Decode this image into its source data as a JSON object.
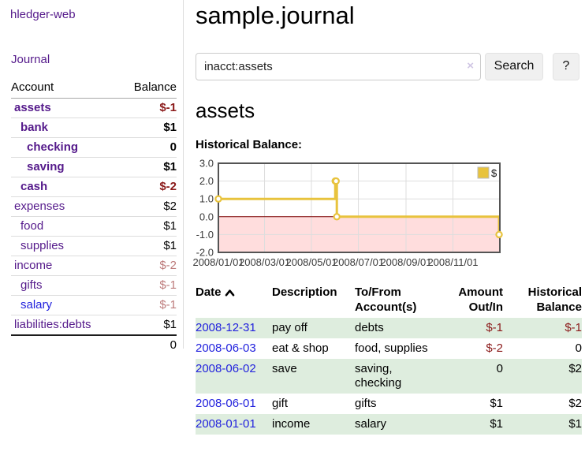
{
  "colors": {
    "link_purple": "#551A8B",
    "link_blue": "#2222DD",
    "negative_strong": "#8b1a1a",
    "negative_soft": "#bd7b7b",
    "row_stripe_green": "#deedde",
    "chart_line": "#E8C33D",
    "chart_negative_fill": "#ffdddd",
    "chart_zero_line": "#800000"
  },
  "sidebar": {
    "app_title": "hledger-web",
    "nav": {
      "journal_label": "Journal"
    },
    "accounts_table": {
      "headers": {
        "account": "Account",
        "balance": "Balance"
      },
      "rows": [
        {
          "account": "assets",
          "indent": 1,
          "bold": true,
          "link_tone": "purple",
          "balance": "$-1",
          "balance_tone": "neg-strong"
        },
        {
          "account": "bank",
          "indent": 2,
          "bold": true,
          "link_tone": "purple",
          "balance": "$1",
          "balance_tone": "pos"
        },
        {
          "account": "checking",
          "indent": 3,
          "bold": true,
          "link_tone": "purple",
          "balance": "0",
          "balance_tone": "pos"
        },
        {
          "account": "saving",
          "indent": 3,
          "bold": true,
          "link_tone": "purple",
          "balance": "$1",
          "balance_tone": "pos"
        },
        {
          "account": "cash",
          "indent": 2,
          "bold": true,
          "link_tone": "purple",
          "balance": "$-2",
          "balance_tone": "neg-strong"
        },
        {
          "account": "expenses",
          "indent": 1,
          "bold": false,
          "link_tone": "purple",
          "balance": "$2",
          "balance_tone": "pos"
        },
        {
          "account": "food",
          "indent": 2,
          "bold": false,
          "link_tone": "purple",
          "balance": "$1",
          "balance_tone": "pos"
        },
        {
          "account": "supplies",
          "indent": 2,
          "bold": false,
          "link_tone": "purple",
          "balance": "$1",
          "balance_tone": "pos"
        },
        {
          "account": "income",
          "indent": 1,
          "bold": false,
          "link_tone": "purple",
          "balance": "$-2",
          "balance_tone": "neg-soft"
        },
        {
          "account": "gifts",
          "indent": 2,
          "bold": false,
          "link_tone": "purple",
          "balance": "$-1",
          "balance_tone": "neg-soft"
        },
        {
          "account": "salary",
          "indent": 2,
          "bold": false,
          "link_tone": "blue",
          "balance": "$-1",
          "balance_tone": "neg-soft"
        },
        {
          "account": "liabilities:debts",
          "indent": 1,
          "bold": false,
          "link_tone": "purple",
          "balance": "$1",
          "balance_tone": "pos"
        }
      ],
      "total": "0"
    }
  },
  "main": {
    "page_title": "sample.journal",
    "search": {
      "value": "inacct:assets",
      "clear_icon": "×",
      "button_label": "Search",
      "help_label": "?"
    },
    "account_heading": "assets",
    "chart_heading": "Historical Balance:"
  },
  "chart_data": {
    "type": "line",
    "step": true,
    "title": "Historical Balance:",
    "series": [
      {
        "name": "$",
        "color": "#E8C33D",
        "points": [
          [
            "2008-01-01",
            1
          ],
          [
            "2008-06-01",
            2
          ],
          [
            "2008-06-02",
            2
          ],
          [
            "2008-06-03",
            0
          ],
          [
            "2008-12-31",
            -1
          ]
        ]
      }
    ],
    "x_range": [
      "2008-01-01",
      "2009-01-01"
    ],
    "x_tick_labels": [
      "2008/01/01",
      "2008/03/01",
      "2008/05/01",
      "2008/07/01",
      "2008/09/01",
      "2008/11/01"
    ],
    "y_ticks": [
      "3.0",
      "2.0",
      "1.0",
      "0.0",
      "-1.0",
      "-2.0"
    ],
    "ylim": [
      -2,
      3
    ],
    "grid": true,
    "legend": {
      "label": "$",
      "position": "top-right"
    },
    "negative_region_fill": "#ffdddd",
    "zero_line_color": "#800000"
  },
  "register": {
    "headers": [
      "Date",
      "Description",
      "To/From\nAccount(s)",
      "Amount\nOut/In",
      "Historical\nBalance"
    ],
    "sort": {
      "column": "Date",
      "direction": "ascending"
    },
    "rows": [
      {
        "date": "2008-12-31",
        "description": "pay off",
        "accounts": "debts",
        "amount": "$-1",
        "amount_tone": "neg",
        "balance": "$-1",
        "balance_tone": "neg",
        "stripe": true
      },
      {
        "date": "2008-06-03",
        "description": "eat & shop",
        "accounts": "food, supplies",
        "amount": "$-2",
        "amount_tone": "neg",
        "balance": "0",
        "balance_tone": "pos",
        "stripe": false
      },
      {
        "date": "2008-06-02",
        "description": "save",
        "accounts": "saving, checking",
        "amount": "0",
        "amount_tone": "pos",
        "balance": "$2",
        "balance_tone": "pos",
        "stripe": true
      },
      {
        "date": "2008-06-01",
        "description": "gift",
        "accounts": "gifts",
        "amount": "$1",
        "amount_tone": "pos",
        "balance": "$2",
        "balance_tone": "pos",
        "stripe": false
      },
      {
        "date": "2008-01-01",
        "description": "income",
        "accounts": "salary",
        "amount": "$1",
        "amount_tone": "pos",
        "balance": "$1",
        "balance_tone": "pos",
        "stripe": true
      }
    ]
  }
}
